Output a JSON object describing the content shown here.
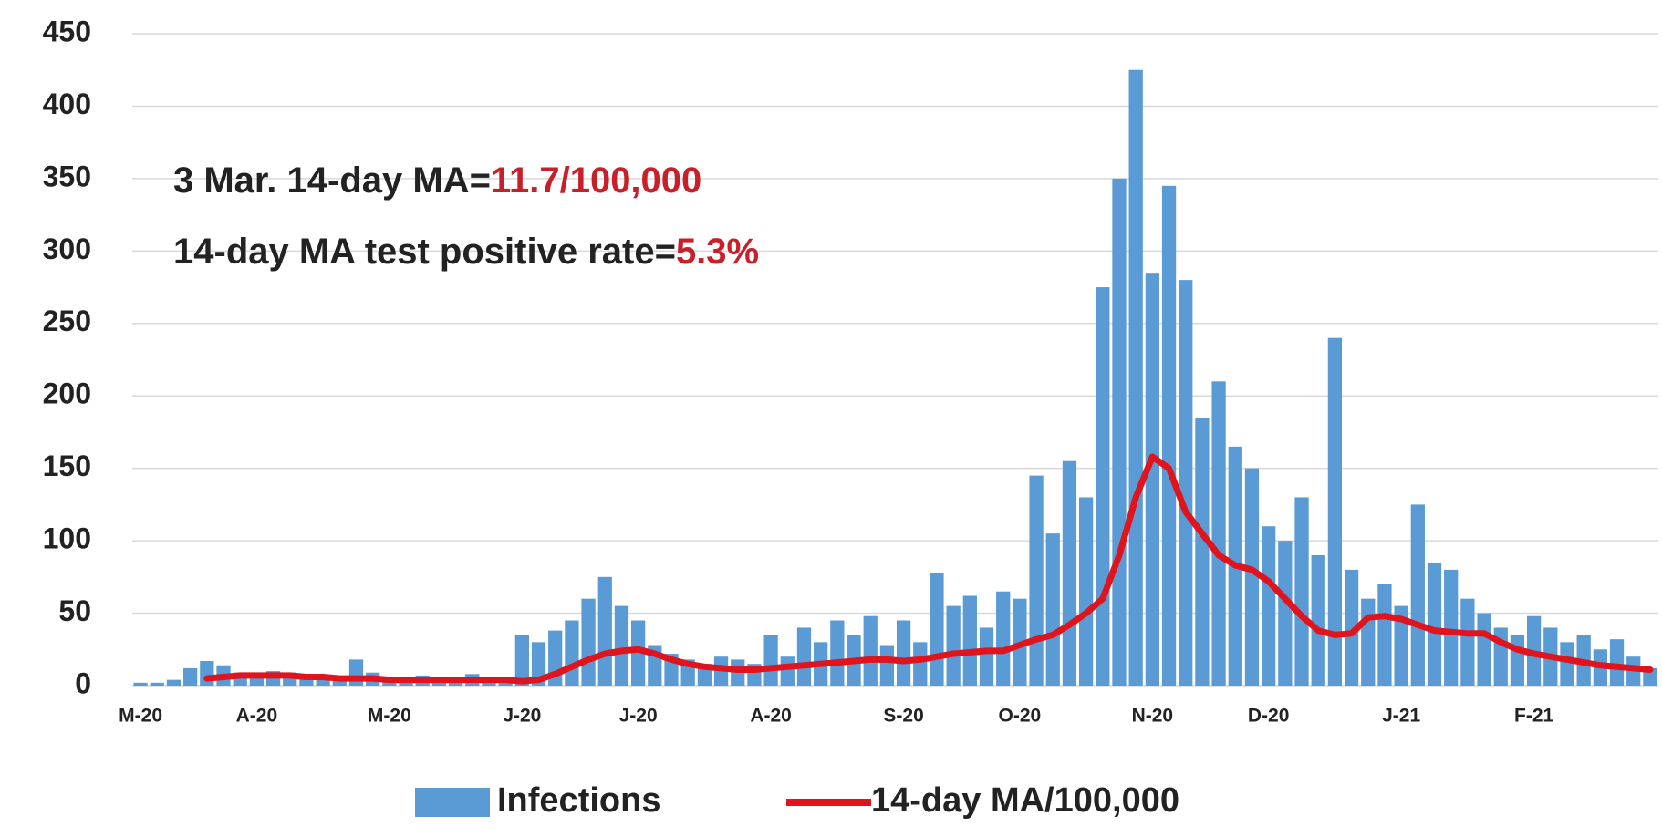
{
  "chart_data": {
    "type": "bar_line",
    "categories": [
      "M-20",
      null,
      null,
      null,
      null,
      null,
      null,
      "A-20",
      null,
      null,
      null,
      null,
      null,
      null,
      null,
      "M-20",
      null,
      null,
      null,
      null,
      null,
      null,
      null,
      "J-20",
      null,
      null,
      null,
      null,
      null,
      null,
      "J-20",
      null,
      null,
      null,
      null,
      null,
      null,
      null,
      "A-20",
      null,
      null,
      null,
      null,
      null,
      null,
      null,
      "S-20",
      null,
      null,
      null,
      null,
      null,
      null,
      "O-20",
      null,
      null,
      null,
      null,
      null,
      null,
      null,
      "N-20",
      null,
      null,
      null,
      null,
      null,
      null,
      "D-20",
      null,
      null,
      null,
      null,
      null,
      null,
      null,
      "J-21",
      null,
      null,
      null,
      null,
      null,
      null,
      null,
      "F-21",
      null,
      null,
      null,
      null,
      null,
      null,
      null
    ],
    "series": [
      {
        "name": "Infections",
        "color": "#5b9bd5",
        "kind": "bar",
        "values": [
          2,
          2,
          4,
          12,
          17,
          14,
          9,
          8,
          10,
          9,
          8,
          7,
          6,
          18,
          9,
          6,
          5,
          7,
          6,
          5,
          8,
          6,
          4,
          35,
          30,
          38,
          45,
          60,
          75,
          55,
          45,
          28,
          22,
          18,
          15,
          20,
          18,
          15,
          35,
          20,
          40,
          30,
          45,
          35,
          48,
          28,
          45,
          30,
          78,
          55,
          62,
          40,
          65,
          60,
          145,
          105,
          155,
          130,
          275,
          350,
          425,
          285,
          345,
          280,
          185,
          210,
          165,
          150,
          110,
          100,
          130,
          90,
          240,
          80,
          60,
          70,
          55,
          125,
          85,
          80,
          60,
          50,
          40,
          35,
          48,
          40,
          30,
          35,
          25,
          32,
          20,
          12
        ]
      },
      {
        "name": "14-day MA/100,000",
        "color": "#e0141c",
        "kind": "line",
        "values": [
          null,
          null,
          null,
          null,
          5,
          6,
          7,
          7,
          7,
          7,
          6,
          6,
          5,
          5,
          5,
          4,
          4,
          4,
          4,
          4,
          4,
          4,
          4,
          3,
          4,
          8,
          13,
          18,
          22,
          24,
          25,
          22,
          18,
          15,
          13,
          12,
          11,
          11,
          12,
          13,
          14,
          15,
          16,
          17,
          18,
          18,
          17,
          18,
          20,
          22,
          23,
          24,
          24,
          28,
          32,
          35,
          42,
          50,
          60,
          90,
          130,
          158,
          150,
          120,
          105,
          90,
          83,
          80,
          72,
          60,
          48,
          38,
          35,
          36,
          47,
          48,
          46,
          42,
          38,
          37,
          36,
          36,
          30,
          25,
          22,
          20,
          18,
          16,
          14,
          13,
          12,
          11
        ]
      }
    ],
    "ylim": [
      0,
      450
    ],
    "yticks": [
      0,
      50,
      100,
      150,
      200,
      250,
      300,
      350,
      400,
      450
    ],
    "grid": true,
    "legend": "bottom",
    "annotations": [
      {
        "parts": [
          {
            "text": "3 Mar. 14-day MA=",
            "color": "#222222"
          },
          {
            "text": "11.7/100,000",
            "color": "#c8202a"
          }
        ]
      },
      {
        "parts": [
          {
            "text": "14-day MA test positive rate=",
            "color": "#222222"
          },
          {
            "text": "5.3%",
            "color": "#c8202a"
          }
        ]
      }
    ]
  }
}
